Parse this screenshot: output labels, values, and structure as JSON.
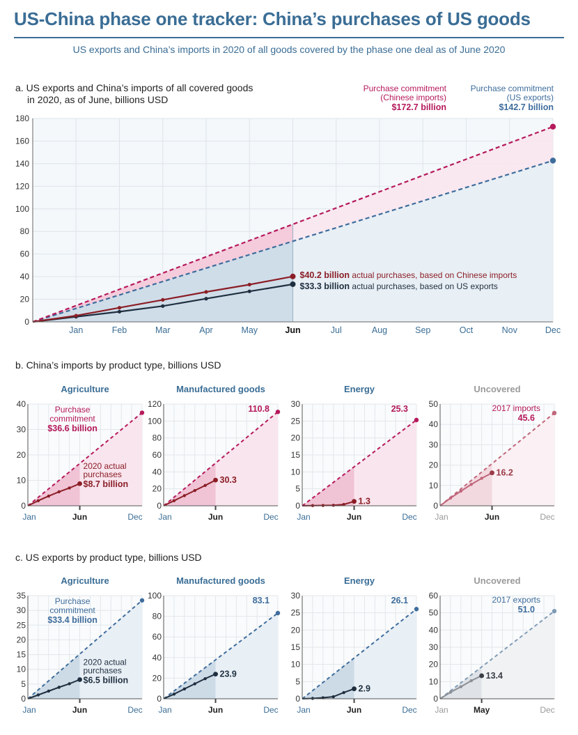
{
  "header": {
    "title": "US-China phase one tracker: China’s purchases of US goods",
    "subtitle": "US exports and China’s imports in 2020 of all goods covered by the phase one deal as of June 2020"
  },
  "colors": {
    "commitment_china": "#b5195b",
    "commitment_us": "#3e6d9c",
    "actual_china": "#8b1e26",
    "actual_us": "#1f2f3f",
    "uncovered": "#9a9a9a",
    "uncovered_china_line": "#c0657a",
    "title_blue": "#3a6d95"
  },
  "chart_data": [
    {
      "id": "a",
      "type": "line",
      "title": "a. US exports and China’s imports of all covered goods in 2020, as of June, billions USD",
      "title_lines": [
        "a. US exports and China’s imports of all covered goods",
        "in 2020, as of June, billions USD"
      ],
      "x_categories": [
        "Jan",
        "Feb",
        "Mar",
        "Apr",
        "May",
        "Jun",
        "Jul",
        "Aug",
        "Sep",
        "Oct",
        "Nov",
        "Dec"
      ],
      "x_highlight": "Jun",
      "ylim": [
        0,
        180
      ],
      "yticks": [
        0,
        20,
        40,
        60,
        80,
        100,
        120,
        140,
        160,
        180
      ],
      "grid": true,
      "series": [
        {
          "name": "Purchase commitment (Chinese imports)",
          "style": "dashed",
          "start": 0,
          "end": 172.7,
          "legend_lines": [
            "Purchase commitment",
            "(Chinese imports)"
          ],
          "legend_value": "$172.7 billion"
        },
        {
          "name": "Purchase commitment (US exports)",
          "style": "dashed",
          "start": 0,
          "end": 142.7,
          "legend_lines": [
            "Purchase commitment",
            "(US exports)"
          ],
          "legend_value": "$142.7 billion"
        },
        {
          "name": "actual purchases, based on Chinese imports",
          "style": "solid",
          "values": [
            0,
            5.5,
            12.5,
            19.5,
            26.5,
            33.0,
            40.2
          ],
          "label_value": "$40.2 billion",
          "label_text": "actual purchases, based on Chinese imports"
        },
        {
          "name": "actual purchases, based on US exports",
          "style": "solid",
          "values": [
            0,
            4.5,
            9.0,
            14.0,
            20.5,
            27.0,
            33.3
          ],
          "label_value": "$33.3 billion",
          "label_text": "actual purchases, based on US exports"
        }
      ]
    },
    {
      "id": "b",
      "title": "b. China’s imports by product type, billions USD",
      "panels": [
        {
          "type": "line",
          "title": "Agriculture",
          "ymax": 40,
          "yticks": [
            0,
            10,
            20,
            30,
            40
          ],
          "commitment": 36.6,
          "actual": [
            0,
            2.0,
            3.8,
            5.5,
            7.0,
            8.7
          ],
          "commit_label": [
            "Purchase",
            "commitment",
            "$36.6 billion"
          ],
          "actual_label": [
            "2020 actual",
            "purchases",
            "$8.7 billion"
          ],
          "xticks": [
            "Jan",
            "Jun",
            "Dec"
          ],
          "last_month": "Jun"
        },
        {
          "type": "line",
          "title": "Manufactured goods",
          "ymax": 120,
          "yticks": [
            0,
            20,
            40,
            60,
            80,
            100,
            120
          ],
          "commitment": 110.8,
          "actual": [
            0,
            6.0,
            12.0,
            18.0,
            24.0,
            30.3
          ],
          "commit_label": [
            "110.8"
          ],
          "actual_label": [
            "30.3"
          ],
          "xticks": [
            "Jan",
            "Jun",
            "Dec"
          ],
          "last_month": "Jun"
        },
        {
          "type": "line",
          "title": "Energy",
          "ymax": 30,
          "yticks": [
            0,
            5,
            10,
            15,
            20,
            25,
            30
          ],
          "commitment": 25.3,
          "actual": [
            0,
            0.05,
            0.1,
            0.15,
            0.4,
            1.3
          ],
          "commit_label": [
            "25.3"
          ],
          "actual_label": [
            "1.3"
          ],
          "xticks": [
            "Jan",
            "Jun",
            "Dec"
          ],
          "last_month": "Jun"
        },
        {
          "type": "line",
          "title": "Uncovered",
          "ymax": 50,
          "yticks": [
            0,
            10,
            20,
            30,
            40,
            50
          ],
          "commitment": 45.6,
          "actual": [
            0,
            3.8,
            7.2,
            10.5,
            13.5,
            16.2
          ],
          "commit_label": [
            "2017 imports",
            "45.6"
          ],
          "actual_label": [
            "16.2"
          ],
          "xticks": [
            "Jan",
            "Jun",
            "Dec"
          ],
          "last_month": "Jun",
          "muted": true
        }
      ]
    },
    {
      "id": "c",
      "title": "c. US exports by product type, billions USD",
      "panels": [
        {
          "type": "line",
          "title": "Agriculture",
          "ymax": 35,
          "yticks": [
            0,
            5,
            10,
            15,
            20,
            25,
            30,
            35
          ],
          "commitment": 33.4,
          "actual": [
            0,
            1.3,
            2.6,
            3.9,
            5.1,
            6.5
          ],
          "commit_label": [
            "Purchase",
            "commitment",
            "$33.4 billion"
          ],
          "actual_label": [
            "2020 actual",
            "purchases",
            "$6.5 billion"
          ],
          "xticks": [
            "Jan",
            "Jun",
            "Dec"
          ],
          "last_month": "Jun"
        },
        {
          "type": "line",
          "title": "Manufactured goods",
          "ymax": 100,
          "yticks": [
            0,
            20,
            40,
            60,
            80,
            100
          ],
          "commitment": 83.1,
          "actual": [
            0,
            4.5,
            9.5,
            14.5,
            19.5,
            23.9
          ],
          "commit_label": [
            "83.1"
          ],
          "actual_label": [
            "23.9"
          ],
          "xticks": [
            "Jan",
            "Jun",
            "Dec"
          ],
          "last_month": "Jun"
        },
        {
          "type": "line",
          "title": "Energy",
          "ymax": 30,
          "yticks": [
            0,
            5,
            10,
            15,
            20,
            25,
            30
          ],
          "commitment": 26.1,
          "actual": [
            0,
            0.1,
            0.3,
            0.6,
            1.8,
            2.9
          ],
          "commit_label": [
            "26.1"
          ],
          "actual_label": [
            "2.9"
          ],
          "xticks": [
            "Jan",
            "Jun",
            "Dec"
          ],
          "last_month": "Jun"
        },
        {
          "type": "line",
          "title": "Uncovered",
          "ymax": 60,
          "yticks": [
            0,
            10,
            20,
            30,
            40,
            50,
            60
          ],
          "commitment": 51.0,
          "actual": [
            0,
            3.8,
            7.0,
            10.5,
            13.4
          ],
          "commit_label": [
            "2017 exports",
            "51.0"
          ],
          "actual_label": [
            "13.4"
          ],
          "xticks": [
            "Jan",
            "May",
            "Dec"
          ],
          "last_month": "May",
          "muted": true
        }
      ]
    }
  ]
}
